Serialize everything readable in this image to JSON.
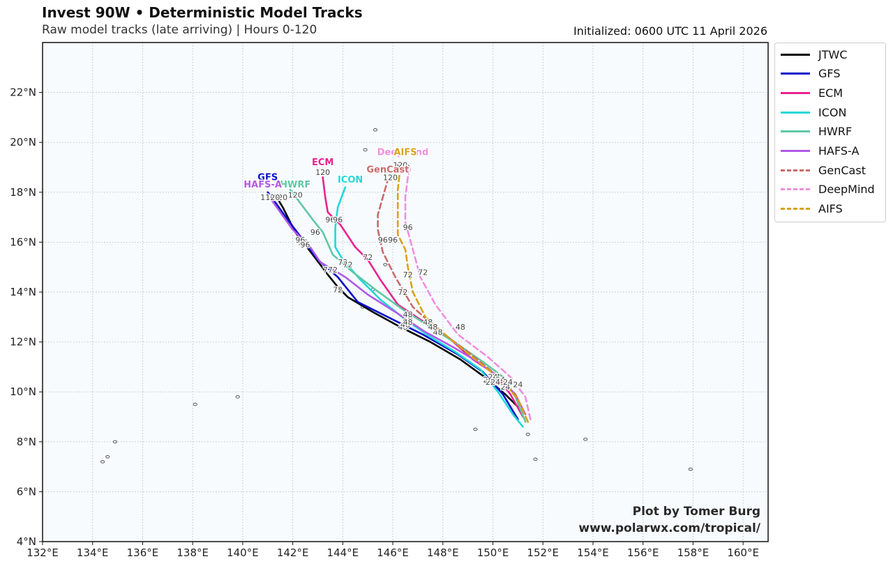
{
  "title": "Invest 90W • Deterministic Model Tracks",
  "subtitle": "Raw model tracks (late arriving) | Hours 0-120",
  "initialized": "Initialized: 0600 UTC 11 April 2026",
  "credit": {
    "line1": "Plot by Tomer Burg",
    "line2": "www.polarwx.com/tropical/"
  },
  "axes": {
    "lon_range": [
      132,
      161
    ],
    "lat_range": [
      4,
      24
    ],
    "lon_ticks": [
      "132°E",
      "134°E",
      "136°E",
      "138°E",
      "140°E",
      "142°E",
      "144°E",
      "146°E",
      "148°E",
      "150°E",
      "152°E",
      "154°E",
      "156°E",
      "158°E",
      "160°E"
    ],
    "lat_ticks": [
      "4°N",
      "6°N",
      "8°N",
      "10°N",
      "12°N",
      "14°N",
      "16°N",
      "18°N",
      "20°N",
      "22°N"
    ]
  },
  "legend": [
    {
      "name": "JTWC",
      "color": "#000000",
      "style": "solid"
    },
    {
      "name": "GFS",
      "color": "#0a10c8",
      "style": "solid"
    },
    {
      "name": "ECM",
      "color": "#e8238e",
      "style": "solid"
    },
    {
      "name": "ICON",
      "color": "#22d8d8",
      "style": "solid"
    },
    {
      "name": "HWRF",
      "color": "#5ec8a4",
      "style": "solid"
    },
    {
      "name": "HAFS-A",
      "color": "#b05ae6",
      "style": "solid"
    },
    {
      "name": "GenCast",
      "color": "#c96a6a",
      "style": "dashed"
    },
    {
      "name": "DeepMind",
      "color": "#ef8edf",
      "style": "dashed"
    },
    {
      "name": "AIFS",
      "color": "#d8a21c",
      "style": "dashed"
    }
  ],
  "chart_data": {
    "type": "track_map",
    "x_unit": "degrees east longitude",
    "y_unit": "degrees north latitude",
    "series": [
      {
        "name": "JTWC",
        "end_label": "",
        "points": [
          [
            151.1,
            9.3
          ],
          [
            150.5,
            9.9
          ],
          [
            149.8,
            10.5
          ],
          [
            148.7,
            11.3
          ],
          [
            147.5,
            12.0
          ],
          [
            146.3,
            12.6
          ],
          [
            145.2,
            13.2
          ],
          [
            144.2,
            13.8
          ],
          [
            143.8,
            14.2
          ],
          [
            143.4,
            14.7
          ],
          [
            142.8,
            15.5
          ],
          [
            142.1,
            16.4
          ],
          [
            141.6,
            17.4
          ],
          [
            141.3,
            17.9
          ]
        ],
        "hour_labels": [
          {
            "h": "24",
            "lon": 149.8,
            "lat": 10.5
          },
          {
            "h": "48",
            "lon": 146.4,
            "lat": 12.6
          },
          {
            "h": "72",
            "lon": 143.8,
            "lat": 14.1
          },
          {
            "h": "96",
            "lon": 142.4,
            "lat": 16.0
          },
          {
            "h": "120",
            "lon": 141.5,
            "lat": 17.8
          }
        ]
      },
      {
        "name": "GFS",
        "end_label": "GFS",
        "points": [
          [
            151.0,
            8.9
          ],
          [
            150.4,
            9.9
          ],
          [
            149.6,
            10.8
          ],
          [
            148.6,
            11.5
          ],
          [
            147.2,
            12.3
          ],
          [
            145.8,
            13.0
          ],
          [
            144.6,
            13.6
          ],
          [
            143.8,
            14.6
          ],
          [
            143.0,
            15.3
          ],
          [
            142.4,
            16.1
          ],
          [
            141.8,
            16.9
          ],
          [
            141.3,
            17.6
          ],
          [
            141.0,
            18.0
          ]
        ],
        "hour_labels": [
          {
            "h": "24",
            "lon": 149.9,
            "lat": 10.4
          },
          {
            "h": "48",
            "lon": 146.5,
            "lat": 12.7
          },
          {
            "h": "72",
            "lon": 143.4,
            "lat": 14.9
          },
          {
            "h": "96",
            "lon": 142.3,
            "lat": 16.1
          },
          {
            "h": "120",
            "lon": 141.0,
            "lat": 17.8
          }
        ],
        "label_pos": {
          "lon": 141.0,
          "lat": 18.6
        }
      },
      {
        "name": "ECM",
        "end_label": "ECM",
        "points": [
          [
            151.2,
            9.0
          ],
          [
            150.7,
            9.9
          ],
          [
            150.1,
            10.7
          ],
          [
            149.2,
            11.3
          ],
          [
            148.2,
            12.2
          ],
          [
            147.1,
            12.9
          ],
          [
            146.2,
            13.5
          ],
          [
            145.5,
            14.5
          ],
          [
            145.0,
            15.3
          ],
          [
            144.5,
            15.8
          ],
          [
            143.9,
            16.7
          ],
          [
            143.4,
            17.2
          ],
          [
            143.3,
            17.8
          ],
          [
            143.2,
            18.6
          ]
        ],
        "hour_labels": [
          {
            "h": "24",
            "lon": 150.1,
            "lat": 10.6
          },
          {
            "h": "48",
            "lon": 147.4,
            "lat": 12.8
          },
          {
            "h": "72",
            "lon": 145.0,
            "lat": 15.4
          },
          {
            "h": "96",
            "lon": 143.5,
            "lat": 16.9
          },
          {
            "h": "120",
            "lon": 143.2,
            "lat": 18.8
          }
        ],
        "label_pos": {
          "lon": 143.2,
          "lat": 19.2
        }
      },
      {
        "name": "ICON",
        "end_label": "ICON",
        "points": [
          [
            151.2,
            8.6
          ],
          [
            150.8,
            9.1
          ],
          [
            150.2,
            10.0
          ],
          [
            149.5,
            10.9
          ],
          [
            148.5,
            11.6
          ],
          [
            147.5,
            12.2
          ],
          [
            146.5,
            12.9
          ],
          [
            145.5,
            13.7
          ],
          [
            144.7,
            14.5
          ],
          [
            144.0,
            15.3
          ],
          [
            143.7,
            15.8
          ],
          [
            143.7,
            16.6
          ],
          [
            143.8,
            17.4
          ],
          [
            144.1,
            18.2
          ]
        ],
        "hour_labels": [
          {
            "h": "24",
            "lon": 150.0,
            "lat": 10.6
          },
          {
            "h": "48",
            "lon": 146.6,
            "lat": 12.9
          },
          {
            "h": "72",
            "lon": 144.0,
            "lat": 15.2
          },
          {
            "h": "96",
            "lon": 143.8,
            "lat": 16.9
          }
        ],
        "label_pos": {
          "lon": 144.3,
          "lat": 18.5
        }
      },
      {
        "name": "HWRF",
        "end_label": "HWRF",
        "points": [
          [
            151.3,
            8.8
          ],
          [
            150.9,
            9.8
          ],
          [
            150.4,
            10.6
          ],
          [
            149.6,
            11.2
          ],
          [
            148.6,
            11.9
          ],
          [
            147.5,
            12.6
          ],
          [
            146.4,
            13.3
          ],
          [
            145.3,
            14.1
          ],
          [
            144.4,
            14.8
          ],
          [
            143.6,
            15.5
          ],
          [
            143.2,
            16.4
          ],
          [
            142.8,
            16.9
          ],
          [
            142.2,
            17.7
          ],
          [
            141.9,
            18.1
          ]
        ],
        "hour_labels": [
          {
            "h": "24",
            "lon": 150.3,
            "lat": 10.5
          },
          {
            "h": "48",
            "lon": 146.6,
            "lat": 13.1
          },
          {
            "h": "72",
            "lon": 144.2,
            "lat": 15.1
          },
          {
            "h": "96",
            "lon": 142.9,
            "lat": 16.4
          },
          {
            "h": "120",
            "lon": 142.1,
            "lat": 17.9
          }
        ],
        "label_pos": {
          "lon": 142.1,
          "lat": 18.3
        }
      },
      {
        "name": "HAFS-A",
        "end_label": "HAFS-A",
        "points": [
          [
            151.3,
            9.1
          ],
          [
            150.9,
            9.9
          ],
          [
            150.2,
            10.6
          ],
          [
            149.4,
            11.2
          ],
          [
            148.4,
            11.8
          ],
          [
            147.3,
            12.4
          ],
          [
            146.1,
            13.2
          ],
          [
            145.0,
            13.9
          ],
          [
            144.1,
            14.6
          ],
          [
            143.1,
            15.2
          ],
          [
            142.7,
            15.8
          ],
          [
            142.0,
            16.5
          ],
          [
            141.5,
            17.2
          ],
          [
            141.0,
            17.9
          ]
        ],
        "hour_labels": [
          {
            "h": "24",
            "lon": 150.1,
            "lat": 10.4
          },
          {
            "h": "48",
            "lon": 146.6,
            "lat": 12.8
          },
          {
            "h": "72",
            "lon": 143.6,
            "lat": 14.9
          },
          {
            "h": "96",
            "lon": 142.5,
            "lat": 15.9
          },
          {
            "h": "120",
            "lon": 141.2,
            "lat": 17.8
          }
        ],
        "label_pos": {
          "lon": 140.8,
          "lat": 18.3
        }
      },
      {
        "name": "GenCast",
        "end_label": "GenCast",
        "points": [
          [
            151.4,
            8.8
          ],
          [
            150.9,
            9.9
          ],
          [
            150.1,
            10.7
          ],
          [
            149.0,
            11.6
          ],
          [
            147.8,
            12.5
          ],
          [
            146.8,
            13.4
          ],
          [
            146.1,
            14.6
          ],
          [
            145.6,
            15.6
          ],
          [
            145.4,
            16.5
          ],
          [
            145.4,
            17.1
          ],
          [
            145.6,
            17.8
          ],
          [
            145.8,
            18.5
          ]
        ],
        "hour_labels": [
          {
            "h": "24",
            "lon": 150.5,
            "lat": 10.2
          },
          {
            "h": "48",
            "lon": 147.8,
            "lat": 12.4
          },
          {
            "h": "72",
            "lon": 146.4,
            "lat": 14.0
          },
          {
            "h": "96",
            "lon": 145.6,
            "lat": 16.1
          },
          {
            "h": "120",
            "lon": 145.9,
            "lat": 18.6
          }
        ],
        "label_pos": {
          "lon": 145.8,
          "lat": 18.9
        }
      },
      {
        "name": "DeepMind",
        "end_label": "DeepMind",
        "points": [
          [
            151.5,
            8.9
          ],
          [
            151.3,
            9.8
          ],
          [
            150.7,
            10.6
          ],
          [
            149.8,
            11.4
          ],
          [
            148.6,
            12.3
          ],
          [
            147.7,
            13.5
          ],
          [
            147.1,
            14.6
          ],
          [
            146.8,
            15.7
          ],
          [
            146.5,
            16.8
          ],
          [
            146.5,
            17.8
          ],
          [
            146.6,
            18.6
          ],
          [
            146.7,
            19.0
          ]
        ],
        "hour_labels": [
          {
            "h": "24",
            "lon": 151.0,
            "lat": 10.3
          },
          {
            "h": "48",
            "lon": 148.7,
            "lat": 12.6
          },
          {
            "h": "72",
            "lon": 147.2,
            "lat": 14.8
          },
          {
            "h": "96",
            "lon": 146.6,
            "lat": 16.6
          },
          {
            "h": "120",
            "lon": 146.4,
            "lat": 19.0
          }
        ],
        "label_pos": {
          "lon": 146.4,
          "lat": 19.6
        }
      },
      {
        "name": "AIFS",
        "end_label": "AIFS",
        "points": [
          [
            151.4,
            8.8
          ],
          [
            151.0,
            9.7
          ],
          [
            150.3,
            10.5
          ],
          [
            149.3,
            11.3
          ],
          [
            148.2,
            12.2
          ],
          [
            147.3,
            13.0
          ],
          [
            146.8,
            14.0
          ],
          [
            146.6,
            15.0
          ],
          [
            146.5,
            15.7
          ],
          [
            146.2,
            16.3
          ],
          [
            146.2,
            17.2
          ],
          [
            146.2,
            18.1
          ],
          [
            146.3,
            19.0
          ]
        ],
        "hour_labels": [
          {
            "h": "24",
            "lon": 150.6,
            "lat": 10.4
          },
          {
            "h": "48",
            "lon": 147.6,
            "lat": 12.6
          },
          {
            "h": "72",
            "lon": 146.6,
            "lat": 14.7
          },
          {
            "h": "96",
            "lon": 146.0,
            "lat": 16.1
          },
          {
            "h": "120",
            "lon": 146.3,
            "lat": 19.1
          }
        ],
        "label_pos": {
          "lon": 146.5,
          "lat": 19.6
        }
      }
    ],
    "islands": [
      {
        "lon": 138.1,
        "lat": 9.5
      },
      {
        "lon": 134.6,
        "lat": 7.4
      },
      {
        "lon": 134.4,
        "lat": 7.2
      },
      {
        "lon": 134.9,
        "lat": 8.0
      },
      {
        "lon": 145.7,
        "lat": 15.1
      },
      {
        "lon": 145.2,
        "lat": 14.1
      },
      {
        "lon": 144.8,
        "lat": 13.4
      },
      {
        "lon": 157.9,
        "lat": 6.9
      },
      {
        "lon": 151.7,
        "lat": 7.3
      },
      {
        "lon": 153.7,
        "lat": 8.1
      },
      {
        "lon": 145.3,
        "lat": 20.5
      },
      {
        "lon": 144.9,
        "lat": 19.7
      },
      {
        "lon": 145.7,
        "lat": 18.8
      },
      {
        "lon": 149.3,
        "lat": 8.5
      },
      {
        "lon": 151.4,
        "lat": 8.3
      },
      {
        "lon": 139.8,
        "lat": 9.8
      }
    ]
  }
}
